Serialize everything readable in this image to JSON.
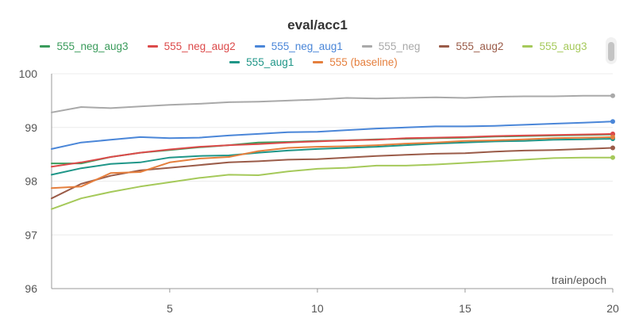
{
  "chart_data": {
    "type": "line",
    "title": "eval/acc1",
    "xlabel": "train/epoch",
    "ylabel": "",
    "xlim": [
      1,
      20
    ],
    "ylim": [
      96,
      100
    ],
    "xticks": [
      5,
      10,
      15,
      20
    ],
    "yticks": [
      96,
      97,
      98,
      99,
      100
    ],
    "grid": "horizontal",
    "legend_position": "top",
    "x": [
      1,
      2,
      3,
      4,
      5,
      6,
      7,
      8,
      9,
      10,
      11,
      12,
      13,
      14,
      15,
      16,
      17,
      18,
      19,
      20
    ],
    "series": [
      {
        "name": "555_neg_aug3",
        "color": "#3a9b5b",
        "values": [
          98.33,
          98.33,
          98.45,
          98.53,
          98.58,
          98.63,
          98.67,
          98.72,
          98.73,
          98.75,
          98.76,
          98.78,
          98.79,
          98.8,
          98.81,
          98.83,
          98.84,
          98.85,
          98.86,
          98.87
        ]
      },
      {
        "name": "555_neg_aug2",
        "color": "#dc4a4a",
        "values": [
          98.27,
          98.35,
          98.45,
          98.53,
          98.59,
          98.64,
          98.67,
          98.69,
          98.72,
          98.74,
          98.76,
          98.77,
          98.8,
          98.81,
          98.82,
          98.84,
          98.85,
          98.86,
          98.87,
          98.88
        ]
      },
      {
        "name": "555_neg_aug1",
        "color": "#4a86d8",
        "values": [
          98.6,
          98.72,
          98.77,
          98.82,
          98.8,
          98.81,
          98.85,
          98.88,
          98.91,
          98.92,
          98.95,
          98.98,
          99.0,
          99.02,
          99.02,
          99.03,
          99.05,
          99.07,
          99.09,
          99.11
        ]
      },
      {
        "name": "555_neg",
        "color": "#a9a9a9",
        "values": [
          99.28,
          99.38,
          99.36,
          99.39,
          99.42,
          99.44,
          99.47,
          99.48,
          99.5,
          99.52,
          99.55,
          99.54,
          99.55,
          99.56,
          99.55,
          99.57,
          99.58,
          99.58,
          99.59,
          99.59
        ]
      },
      {
        "name": "555_aug2",
        "color": "#9a5b48",
        "values": [
          97.68,
          97.95,
          98.1,
          98.2,
          98.25,
          98.3,
          98.35,
          98.37,
          98.4,
          98.41,
          98.44,
          98.47,
          98.49,
          98.51,
          98.52,
          98.55,
          98.57,
          98.58,
          98.6,
          98.62
        ]
      },
      {
        "name": "555_aug3",
        "color": "#a5c95a",
        "values": [
          97.48,
          97.68,
          97.8,
          97.9,
          97.98,
          98.06,
          98.12,
          98.11,
          98.18,
          98.23,
          98.25,
          98.29,
          98.29,
          98.31,
          98.34,
          98.37,
          98.4,
          98.43,
          98.44,
          98.44
        ]
      },
      {
        "name": "555_aug1",
        "color": "#1f9688",
        "values": [
          98.12,
          98.24,
          98.32,
          98.35,
          98.44,
          98.47,
          98.48,
          98.53,
          98.57,
          98.6,
          98.62,
          98.64,
          98.67,
          98.7,
          98.72,
          98.74,
          98.75,
          98.77,
          98.78,
          98.79
        ]
      },
      {
        "name": "555 (baseline)",
        "color": "#e57f3d",
        "values": [
          97.87,
          97.9,
          98.15,
          98.17,
          98.35,
          98.42,
          98.45,
          98.56,
          98.62,
          98.64,
          98.65,
          98.67,
          98.7,
          98.72,
          98.75,
          98.76,
          98.78,
          98.8,
          98.81,
          98.82
        ]
      }
    ]
  },
  "legend": {
    "rows": [
      [
        {
          "label": "555_neg_aug3",
          "color": "#3a9b5b"
        },
        {
          "label": "555_neg_aug2",
          "color": "#dc4a4a"
        },
        {
          "label": "555_neg_aug1",
          "color": "#4a86d8"
        },
        {
          "label": "555_neg",
          "color": "#a9a9a9"
        },
        {
          "label": "555_aug2",
          "color": "#9a5b48"
        },
        {
          "label": "555_aug3",
          "color": "#a5c95a"
        }
      ],
      [
        {
          "label": "555_aug1",
          "color": "#1f9688"
        },
        {
          "label": "555 (baseline)",
          "color": "#e57f3d"
        }
      ]
    ]
  }
}
